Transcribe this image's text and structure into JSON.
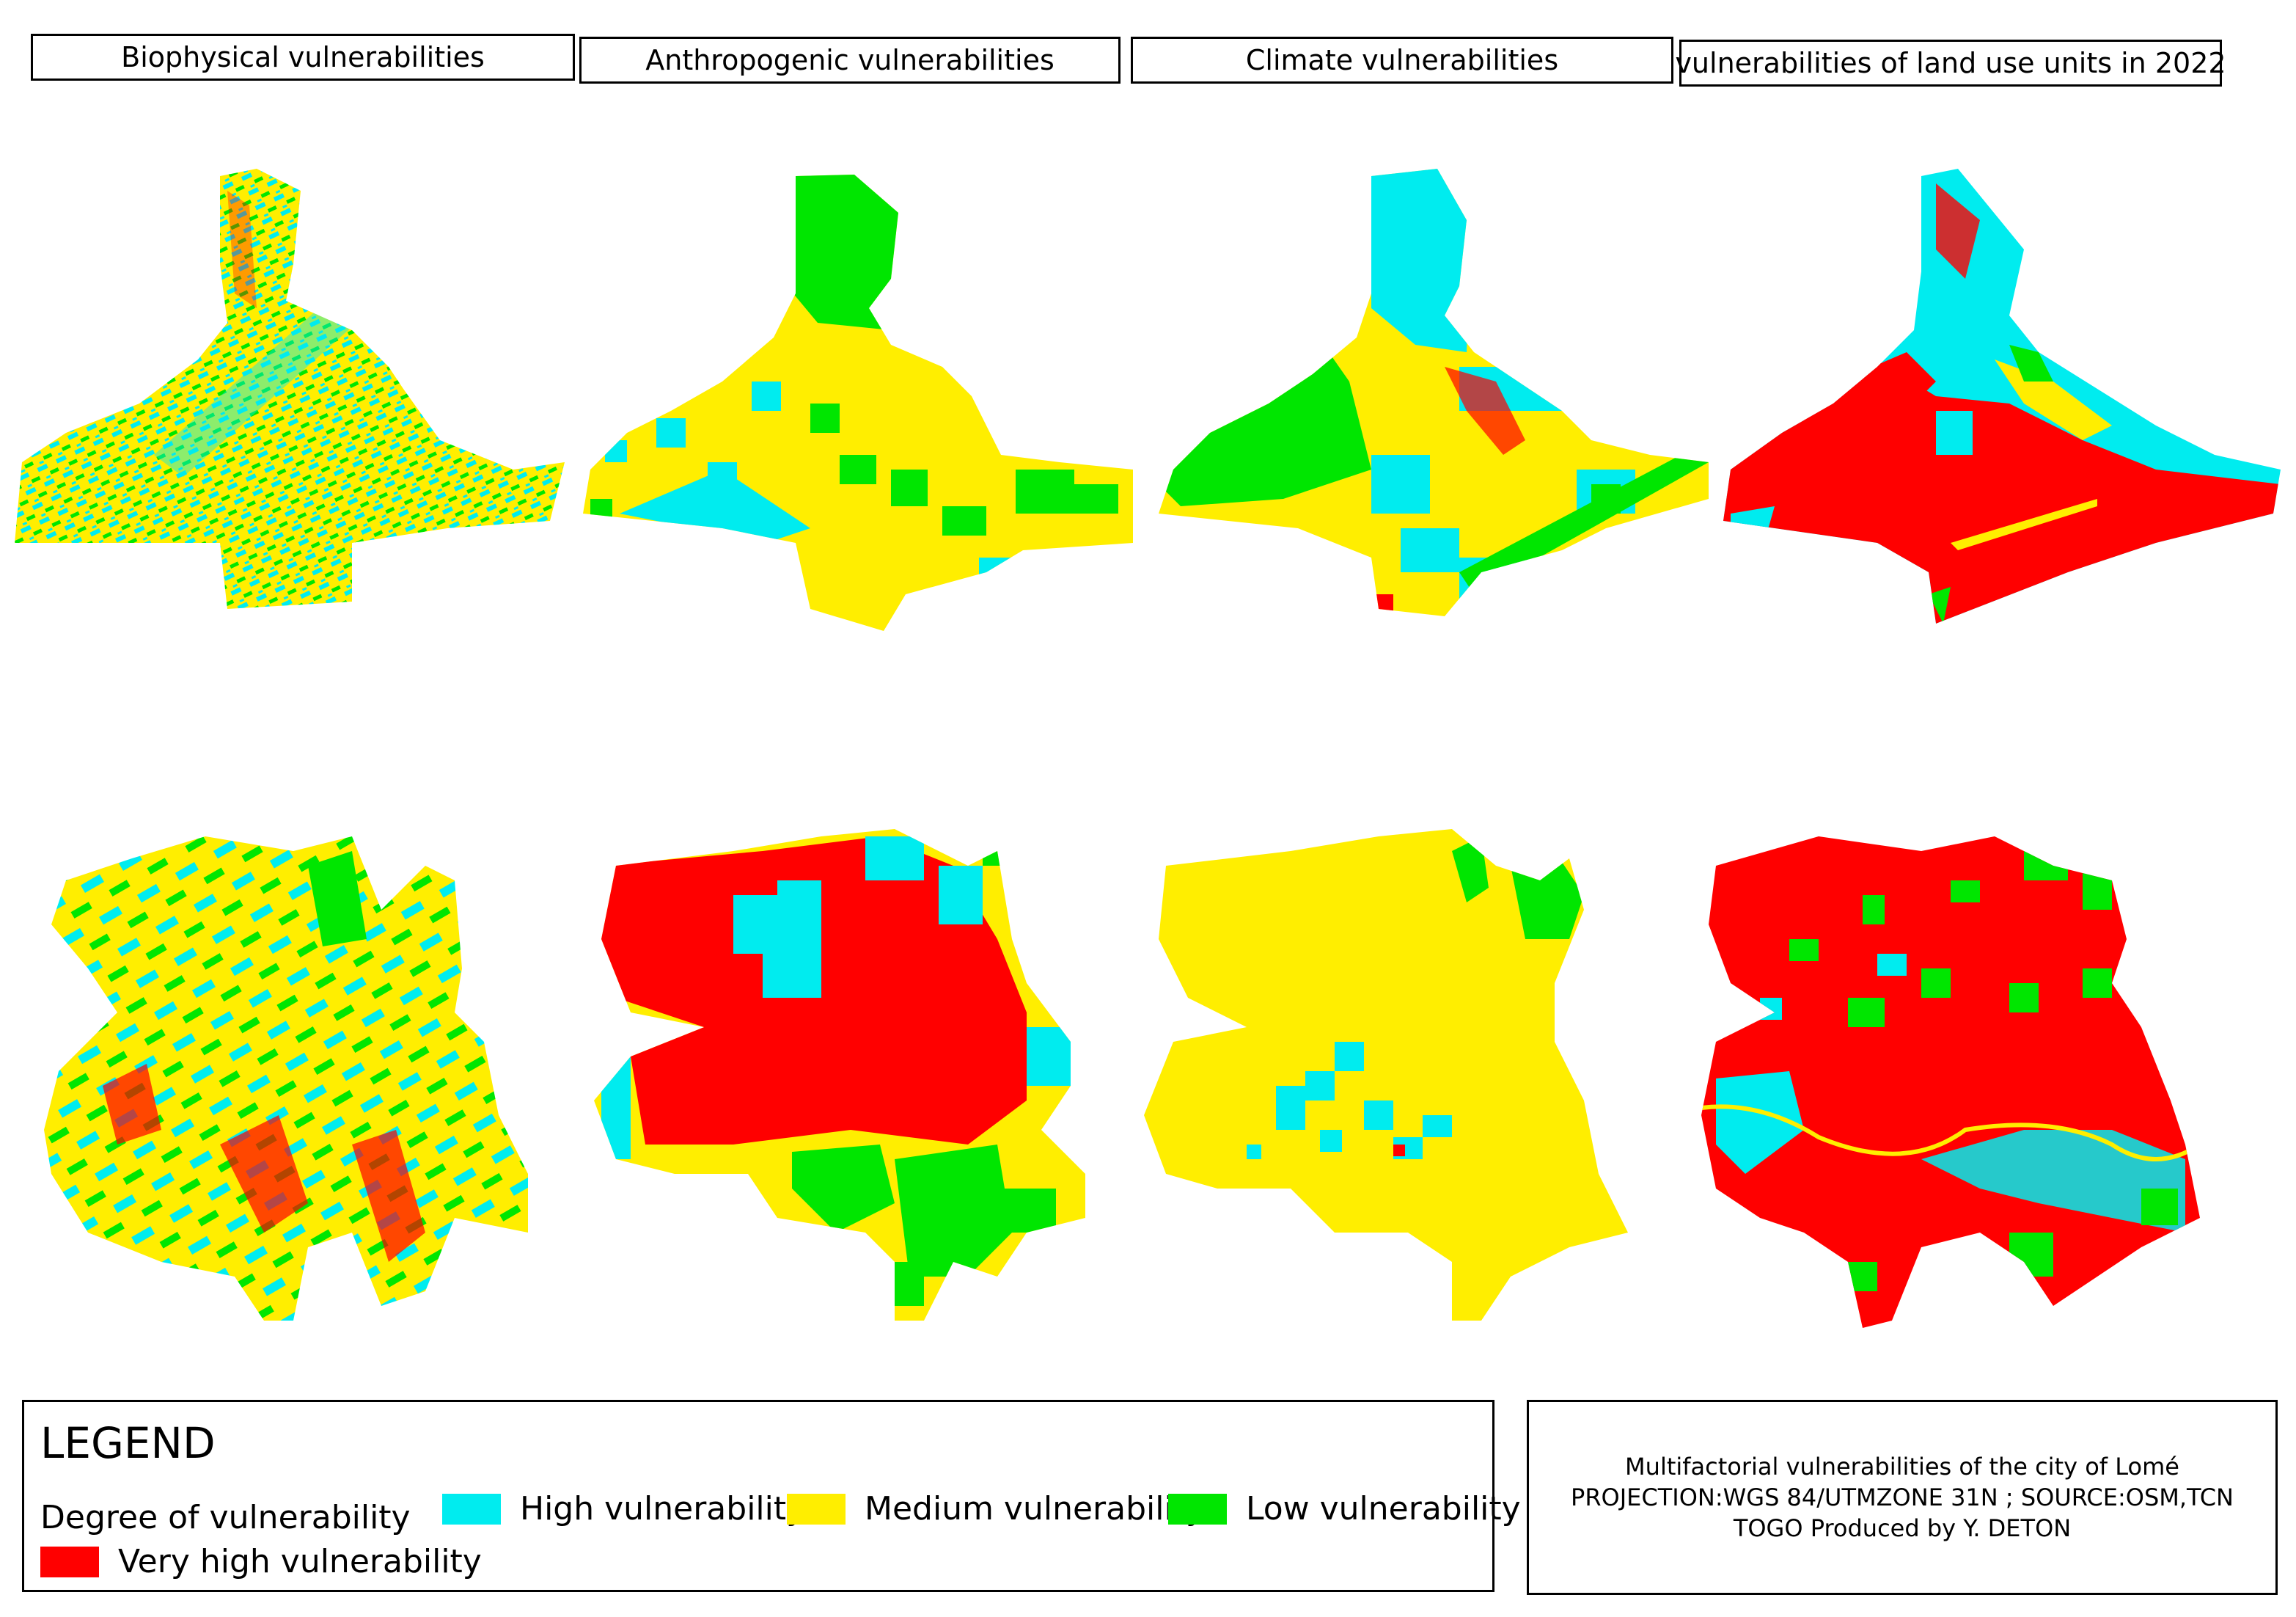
{
  "headers": [
    "Biophysical vulnerabilities",
    "Anthropogenic vulnerabilities",
    "Climate vulnerabilities",
    "vulnerabilities of land use units in 2022"
  ],
  "legend": {
    "title": "LEGEND",
    "subtitle": "Degree of vulnerability",
    "items": [
      {
        "label": "Very high vulnerability",
        "color": "#ff0000"
      },
      {
        "label": "High vulnerability",
        "color": "#00ecef"
      },
      {
        "label": "Medium vulnerability",
        "color": "#ffee00"
      },
      {
        "label": "Low vulnerability",
        "color": "#00e600"
      }
    ]
  },
  "info": {
    "line1": "Multifactorial vulnerabilities of the city of Lomé",
    "line2": "PROJECTION:WGS 84/UTMZONE 31N ; SOURCE:OSM,TCN",
    "line3": "TOGO Produced by Y. DETON"
  },
  "colors": {
    "very_high": "#ff0000",
    "high": "#00ecef",
    "medium": "#ffee00",
    "low": "#00e600"
  }
}
